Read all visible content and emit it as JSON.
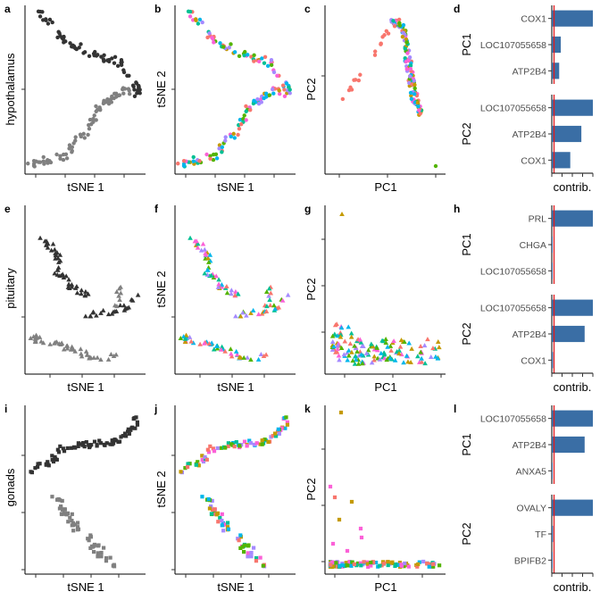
{
  "figure": {
    "row_labels": [
      "hypothalamus",
      "pituitary",
      "gonads"
    ],
    "panel_letters": [
      "a",
      "b",
      "c",
      "d",
      "e",
      "f",
      "g",
      "h",
      "i",
      "j",
      "k",
      "l"
    ]
  },
  "axis_titles": {
    "tsne_x": "tSNE 1",
    "tsne_y": "tSNE 2",
    "pca_x": "PC1",
    "pca_y": "PC2",
    "contrib_x": "contrib.",
    "facet_pc1": "PC1",
    "facet_pc2": "PC2"
  },
  "colors": {
    "tsne_greys": [
      "#333333",
      "#808080"
    ],
    "treatment_palette": [
      "#F8766D",
      "#C49A00",
      "#53B400",
      "#00C094",
      "#00B6EB",
      "#A58AFF",
      "#FB61D7"
    ],
    "bar_fill": "#3A6EA5",
    "ref_line": "#E41A1C"
  },
  "chart_data": [
    {
      "type": "bar",
      "panel": "d",
      "tissue": "hypothalamus",
      "facets": [
        {
          "name": "PC1",
          "categories": [
            "COX1",
            "LOC107055658",
            "ATP2B4"
          ],
          "values": [
            1.0,
            0.22,
            0.18
          ],
          "xlim": [
            0,
            1
          ]
        },
        {
          "name": "PC2",
          "categories": [
            "LOC107055658",
            "ATP2B4",
            "COX1"
          ],
          "values": [
            1.0,
            0.72,
            0.45
          ],
          "xlim": [
            0,
            1
          ]
        }
      ],
      "xlabel": "contrib.",
      "ylabel": ""
    },
    {
      "type": "bar",
      "panel": "h",
      "tissue": "pituitary",
      "facets": [
        {
          "name": "PC1",
          "categories": [
            "PRL",
            "CHGA",
            "LOC107055658"
          ],
          "values": [
            1.0,
            0.02,
            0.02
          ],
          "xlim": [
            0,
            1
          ]
        },
        {
          "name": "PC2",
          "categories": [
            "LOC107055658",
            "ATP2B4",
            "COX1"
          ],
          "values": [
            1.0,
            0.8,
            0.03
          ],
          "xlim": [
            0,
            1
          ]
        }
      ],
      "xlabel": "contrib.",
      "ylabel": ""
    },
    {
      "type": "bar",
      "panel": "l",
      "tissue": "gonads",
      "facets": [
        {
          "name": "PC1",
          "categories": [
            "LOC107055658",
            "ATP2B4",
            "ANXA5"
          ],
          "values": [
            1.0,
            0.8,
            0.02
          ],
          "xlim": [
            0,
            1
          ]
        },
        {
          "name": "PC2",
          "categories": [
            "OVALY",
            "TF",
            "BPIFB2"
          ],
          "values": [
            1.0,
            0.03,
            0.02
          ],
          "xlim": [
            0,
            1
          ]
        }
      ],
      "xlabel": "contrib.",
      "ylabel": ""
    },
    {
      "type": "scatter",
      "panel": "a",
      "tissue": "hypothalamus",
      "xlabel": "tSNE 1",
      "ylabel": "",
      "color_by": "grey",
      "marker": "circle"
    },
    {
      "type": "scatter",
      "panel": "b",
      "tissue": "hypothalamus",
      "xlabel": "tSNE 1",
      "ylabel": "tSNE 2",
      "color_by": "treatment",
      "marker": "circle"
    },
    {
      "type": "scatter",
      "panel": "c",
      "tissue": "hypothalamus",
      "xlabel": "PC1",
      "ylabel": "PC2",
      "color_by": "treatment",
      "marker": "circle"
    },
    {
      "type": "scatter",
      "panel": "e",
      "tissue": "pituitary",
      "xlabel": "tSNE 1",
      "ylabel": "",
      "color_by": "grey",
      "marker": "triangle"
    },
    {
      "type": "scatter",
      "panel": "f",
      "tissue": "pituitary",
      "xlabel": "tSNE 1",
      "ylabel": "tSNE 2",
      "color_by": "treatment",
      "marker": "triangle"
    },
    {
      "type": "scatter",
      "panel": "g",
      "tissue": "pituitary",
      "xlabel": "PC1",
      "ylabel": "PC2",
      "color_by": "treatment",
      "marker": "triangle"
    },
    {
      "type": "scatter",
      "panel": "i",
      "tissue": "gonads",
      "xlabel": "tSNE 1",
      "ylabel": "",
      "color_by": "grey",
      "marker": "square"
    },
    {
      "type": "scatter",
      "panel": "j",
      "tissue": "gonads",
      "xlabel": "tSNE 1",
      "ylabel": "tSNE 2",
      "color_by": "treatment",
      "marker": "square"
    },
    {
      "type": "scatter",
      "panel": "k",
      "tissue": "gonads",
      "xlabel": "PC1",
      "ylabel": "PC2",
      "color_by": "treatment",
      "marker": "square"
    }
  ]
}
